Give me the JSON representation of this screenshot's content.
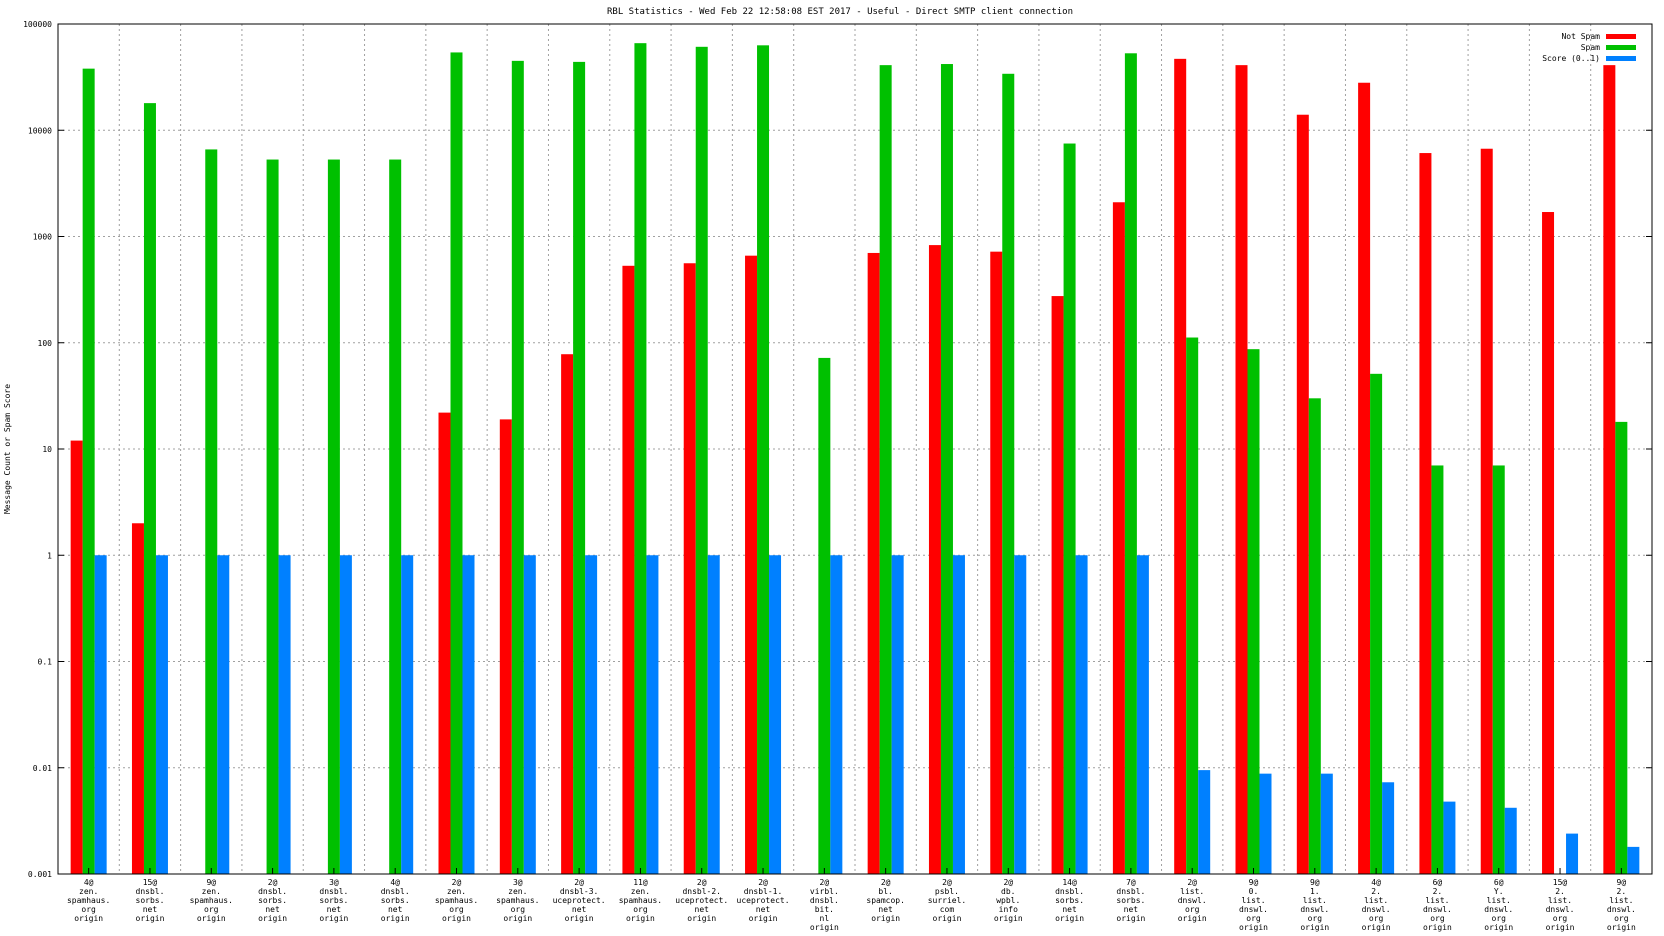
{
  "chart_data": {
    "type": "bar",
    "title": "RBL Statistics - Wed Feb 22 12:58:08 EST 2017 - Useful - Direct SMTP client connection",
    "xlabel": "",
    "ylabel": "Message Count or Spam Score",
    "yscale": "log",
    "ylim": [
      0.001,
      100000
    ],
    "yticks": [
      "0.001",
      "0.01",
      "0.1",
      "1",
      "10",
      "100",
      "1000",
      "10000",
      "100000"
    ],
    "grid": true,
    "legend_position": "top-right",
    "categories": [
      [
        "4@",
        "zen.",
        "spamhaus.",
        "org",
        "origin"
      ],
      [
        "15@",
        "dnsbl.",
        "sorbs.",
        "net",
        "origin"
      ],
      [
        "9@",
        "zen.",
        "spamhaus.",
        "org",
        "origin"
      ],
      [
        "2@",
        "dnsbl.",
        "sorbs.",
        "net",
        "origin"
      ],
      [
        "3@",
        "dnsbl.",
        "sorbs.",
        "net",
        "origin"
      ],
      [
        "4@",
        "dnsbl.",
        "sorbs.",
        "net",
        "origin"
      ],
      [
        "2@",
        "zen.",
        "spamhaus.",
        "org",
        "origin"
      ],
      [
        "3@",
        "zen.",
        "spamhaus.",
        "org",
        "origin"
      ],
      [
        "2@",
        "dnsbl-3.",
        "uceprotect.",
        "net",
        "origin"
      ],
      [
        "11@",
        "zen.",
        "spamhaus.",
        "org",
        "origin"
      ],
      [
        "2@",
        "dnsbl-2.",
        "uceprotect.",
        "net",
        "origin"
      ],
      [
        "2@",
        "dnsbl-1.",
        "uceprotect.",
        "net",
        "origin"
      ],
      [
        "2@",
        "virbl.",
        "dnsbl.",
        "bit.",
        "nl",
        "origin"
      ],
      [
        "2@",
        "bl.",
        "spamcop.",
        "net",
        "origin"
      ],
      [
        "2@",
        "psbl.",
        "surriel.",
        "com",
        "origin"
      ],
      [
        "2@",
        "db.",
        "wpbl.",
        "info",
        "origin"
      ],
      [
        "14@",
        "dnsbl.",
        "sorbs.",
        "net",
        "origin"
      ],
      [
        "7@",
        "dnsbl.",
        "sorbs.",
        "net",
        "origin"
      ],
      [
        "2@",
        "list.",
        "dnswl.",
        "org",
        "origin"
      ],
      [
        "9@",
        "0.",
        "list.",
        "dnswl.",
        "org",
        "origin"
      ],
      [
        "9@",
        "1.",
        "list.",
        "dnswl.",
        "org",
        "origin"
      ],
      [
        "4@",
        "2.",
        "list.",
        "dnswl.",
        "org",
        "origin"
      ],
      [
        "6@",
        "2.",
        "list.",
        "dnswl.",
        "org",
        "origin"
      ],
      [
        "6@",
        "Y.",
        "list.",
        "dnswl.",
        "org",
        "origin"
      ],
      [
        "15@",
        "2.",
        "list.",
        "dnswl.",
        "org",
        "origin"
      ],
      [
        "9@",
        "2.",
        "list.",
        "dnswl.",
        "org",
        "origin"
      ]
    ],
    "series": [
      {
        "name": "Not Spam",
        "color": "#ff0000",
        "values": [
          12,
          2,
          null,
          null,
          null,
          null,
          22,
          19,
          78,
          530,
          560,
          660,
          null,
          700,
          830,
          720,
          275,
          2100,
          47000,
          41000,
          14000,
          28000,
          6100,
          6700,
          1700,
          41000
        ]
      },
      {
        "name": "Spam",
        "color": "#00c000",
        "values": [
          38000,
          18000,
          6600,
          5300,
          5300,
          5300,
          54000,
          45000,
          44000,
          66000,
          61000,
          63000,
          72,
          41000,
          42000,
          34000,
          7500,
          53000,
          112,
          87,
          30,
          51,
          7,
          7,
          null,
          18
        ]
      },
      {
        "name": "Score (0..1)",
        "color": "#0080ff",
        "values": [
          1,
          1,
          1,
          1,
          1,
          1,
          1,
          1,
          1,
          1,
          1,
          1,
          1,
          1,
          1,
          1,
          1,
          1,
          0.0095,
          0.0088,
          0.0088,
          0.0073,
          0.0048,
          0.0042,
          0.0024,
          0.0018
        ]
      }
    ]
  }
}
